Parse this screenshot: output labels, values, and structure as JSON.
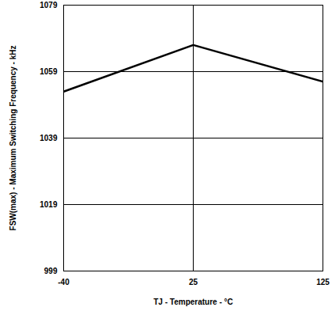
{
  "chart_data": {
    "type": "line",
    "categories": [
      "-40",
      "25",
      "125"
    ],
    "values": [
      1053,
      1067,
      1056
    ],
    "color": "#000000",
    "ylim": [
      999,
      1079
    ],
    "yticks": [
      999,
      1019,
      1039,
      1059,
      1079
    ],
    "grid": true,
    "xlabel": "TJ - Temperature - °C",
    "ylabel": "FSW(max) - Maximum Switching Frequency - kHz"
  }
}
